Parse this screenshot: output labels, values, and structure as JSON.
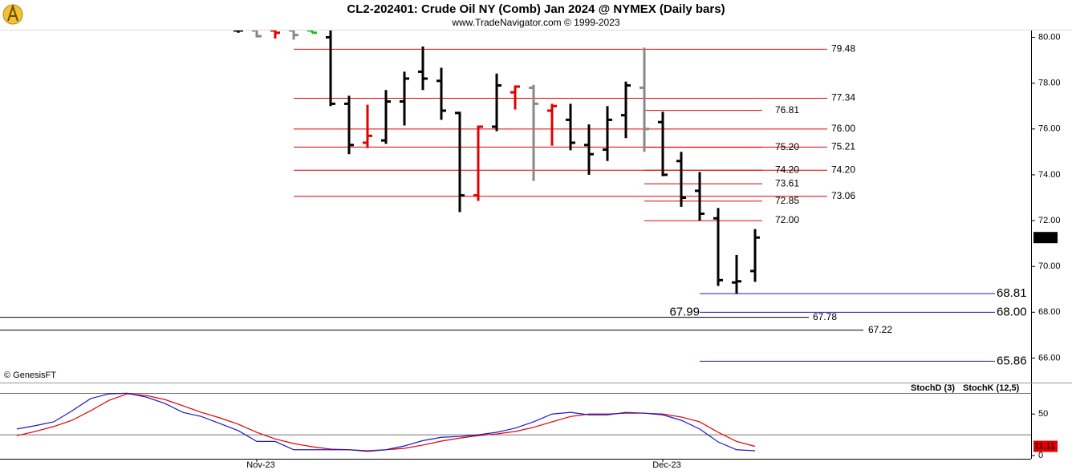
{
  "title": "CL2-202401:  Crude Oil NY (Comb) Jan 2024 @ NYMEX  (Daily bars)",
  "subtitle": "www.TradeNavigator.com © 1999-2023",
  "source": "© GenesisFT",
  "chart_data": [
    {
      "type": "ohlc",
      "open": [
        null,
        null,
        null,
        null,
        null,
        null,
        null,
        null,
        null,
        null,
        null,
        null,
        80.3,
        80.3,
        80.3,
        80.3,
        80.3,
        80.0,
        77.1,
        75.4,
        75.5,
        77.2,
        78.5,
        78.1,
        76.7,
        73.1,
        76.1,
        77.6,
        77.8,
        76.8,
        76.4,
        75.3,
        75.1,
        76.6,
        77.8,
        76.3,
        74.6,
        73.3,
        72.1,
        69.3,
        69.8
      ],
      "high": [
        null,
        null,
        null,
        null,
        null,
        null,
        null,
        null,
        null,
        null,
        null,
        null,
        80.4,
        80.5,
        80.6,
        80.5,
        80.4,
        80.5,
        77.45,
        77.06,
        77.7,
        78.5,
        79.6,
        78.67,
        76.75,
        76.15,
        78.42,
        77.9,
        77.93,
        77.1,
        77.1,
        76.2,
        77.0,
        78.07,
        79.55,
        76.75,
        75.0,
        74.12,
        72.55,
        70.5,
        71.63
      ],
      "low": [
        null,
        null,
        null,
        null,
        null,
        null,
        null,
        null,
        null,
        null,
        null,
        null,
        80.2,
        80.0,
        79.95,
        79.9,
        80.2,
        77.0,
        74.9,
        75.17,
        75.35,
        76.15,
        77.7,
        76.4,
        72.37,
        72.86,
        75.9,
        76.85,
        73.73,
        75.27,
        75.07,
        74.0,
        74.6,
        75.6,
        75.0,
        73.94,
        72.6,
        72.0,
        69.15,
        68.8,
        69.33
      ],
      "close": [
        null,
        null,
        null,
        null,
        null,
        null,
        null,
        null,
        null,
        null,
        null,
        null,
        80.3,
        80.05,
        80.2,
        80.1,
        80.2,
        77.1,
        75.3,
        75.7,
        77.2,
        78.2,
        78.2,
        76.8,
        73.1,
        76.1,
        77.9,
        77.85,
        77.1,
        77.0,
        75.4,
        74.9,
        76.4,
        77.9,
        76.0,
        74.0,
        73.0,
        72.3,
        69.4,
        69.35,
        71.26
      ],
      "bar_colors": [
        null,
        null,
        null,
        null,
        null,
        null,
        null,
        null,
        null,
        null,
        null,
        null,
        "#000000",
        "#888888",
        "#e00000",
        "#888888",
        "#22bb22",
        "#000000",
        "#000000",
        "#e00000",
        "#000000",
        "#000000",
        "#000000",
        "#000000",
        "#000000",
        "#e00000",
        "#000000",
        "#e00000",
        "#888888",
        "#e00000",
        "#000000",
        "#000000",
        "#000000",
        "#000000",
        "#888888",
        "#000000",
        "#000000",
        "#000000",
        "#000000",
        "#000000",
        "#000000"
      ],
      "ylim": [
        65.0,
        80.3
      ],
      "yticks": [
        {
          "value": 66,
          "label": "66.00"
        },
        {
          "value": 68,
          "label": "68.00"
        },
        {
          "value": 70,
          "label": "70.00"
        },
        {
          "value": 72,
          "label": "72.00"
        },
        {
          "value": 74,
          "label": "74.00"
        },
        {
          "value": 76,
          "label": "76.00"
        },
        {
          "value": 78,
          "label": "78.00"
        },
        {
          "value": 80,
          "label": "80.00"
        }
      ],
      "red_levels_long": [
        {
          "value": 79.48,
          "label": "79.48"
        },
        {
          "value": 77.34,
          "label": "77.34"
        },
        {
          "value": 76.0,
          "label": "76.00"
        },
        {
          "value": 75.21,
          "label": "75.21"
        },
        {
          "value": 74.2,
          "label": "74.20"
        },
        {
          "value": 73.06,
          "label": "73.06"
        }
      ],
      "red_levels_short": [
        {
          "value": 76.81,
          "label": "76.81"
        },
        {
          "value": 75.2,
          "label": "75.20"
        },
        {
          "value": 74.2,
          "label": "74.20"
        },
        {
          "value": 73.61,
          "label": "73.61"
        },
        {
          "value": 72.85,
          "label": "72.85"
        },
        {
          "value": 72.0,
          "label": "72.00"
        }
      ],
      "blue_levels": [
        {
          "value": 68.81,
          "label": "68.81"
        },
        {
          "value": 68.0,
          "label": "68.00"
        },
        {
          "value": 65.86,
          "label": "65.86"
        }
      ],
      "black_levels": [
        {
          "value": 67.78,
          "label": "67.78"
        },
        {
          "value": 67.22,
          "label": "67.22"
        }
      ],
      "annotations": [
        {
          "text": "67.99",
          "value": 67.99
        }
      ]
    },
    {
      "type": "line",
      "categories": [
        null,
        null,
        null,
        null,
        null,
        null,
        null,
        null,
        null,
        null,
        null,
        null,
        null,
        "Nov-23",
        null,
        null,
        null,
        null,
        null,
        null,
        null,
        null,
        null,
        null,
        null,
        null,
        null,
        null,
        null,
        null,
        null,
        null,
        null,
        null,
        null,
        "Dec-23",
        null,
        null,
        null,
        null,
        null
      ],
      "series": [
        {
          "name": "StochD (3)",
          "color": "#e00000",
          "values": [
            24,
            29,
            35,
            42.5,
            54,
            66.6,
            74.4,
            72.4,
            67.6,
            60,
            52,
            45.4,
            37.7,
            28,
            20,
            14.5,
            10.6,
            7.7,
            7,
            5.8,
            7,
            8.7,
            12.6,
            17.4,
            21,
            24,
            26,
            29,
            34,
            40.6,
            47,
            50,
            50,
            51,
            51,
            50,
            46.4,
            40.6,
            28,
            17,
            11.11
          ]
        },
        {
          "name": "StochK (12,5)",
          "color": "#1a1acc",
          "values": [
            32,
            36,
            40.6,
            54,
            68.6,
            74.4,
            75,
            70.5,
            63,
            52,
            47,
            38.6,
            30,
            17,
            17,
            7,
            7,
            7,
            7,
            5,
            7,
            11.6,
            18,
            22,
            23,
            25,
            28,
            33,
            40.6,
            50,
            52,
            49,
            49,
            52,
            51,
            49,
            42.5,
            32,
            16.4,
            7,
            5.8
          ]
        }
      ],
      "ylim": [
        0,
        85
      ],
      "yticks": [
        0,
        50
      ],
      "ref_lines": [
        75,
        25
      ]
    }
  ]
}
